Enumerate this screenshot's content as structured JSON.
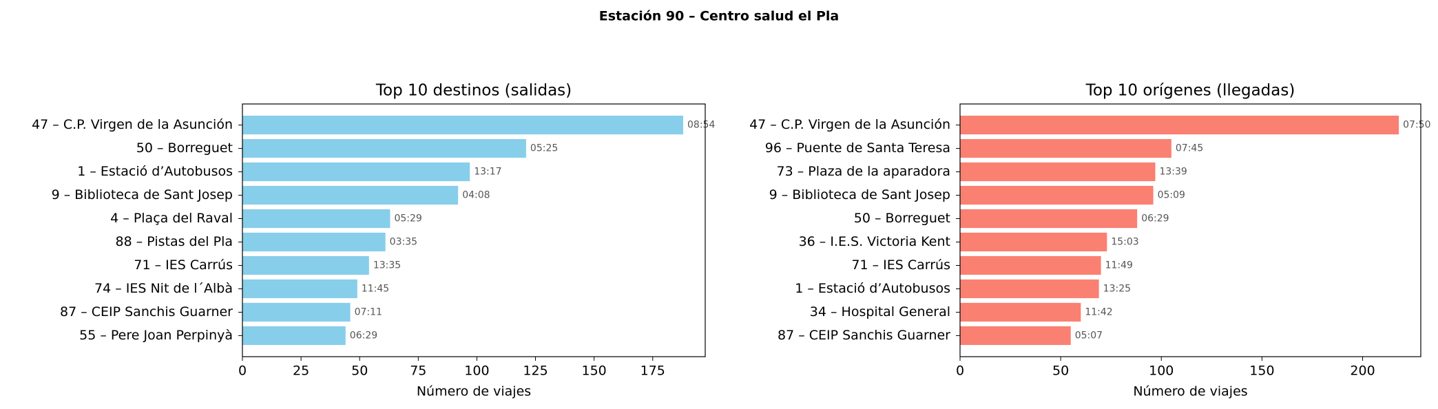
{
  "title": "Estación 90 – Centro salud el Pla",
  "chart_data": [
    {
      "type": "barh",
      "title": "Top 10 destinos (salidas)",
      "x_label": "Número de viajes",
      "color": "#87ceeb",
      "categories": [
        "47 – C.P. Virgen de la Asunción",
        "50 – Borreguet",
        "1 – Estació d’Autobusos",
        "9 – Biblioteca de Sant Josep",
        "4 – Plaça del Raval",
        "88 – Pistas del Pla",
        "71 – IES Carrús",
        "74 – IES Nit de l´Albà",
        "87 – CEIP Sanchis Guarner",
        "55 – Pere Joan Perpinyà"
      ],
      "values": [
        188,
        121,
        97,
        92,
        63,
        61,
        54,
        49,
        46,
        44
      ],
      "bar_labels": [
        "08:54",
        "05:25",
        "13:17",
        "04:08",
        "05:29",
        "03:35",
        "13:35",
        "11:45",
        "07:11",
        "06:29"
      ],
      "xlim": [
        0,
        197.4
      ],
      "xticks": [
        0,
        25,
        50,
        75,
        100,
        125,
        150,
        175
      ]
    },
    {
      "type": "barh",
      "title": "Top 10 orígenes (llegadas)",
      "x_label": "Número de viajes",
      "color": "#fa8072",
      "categories": [
        "47 – C.P. Virgen de la Asunción",
        "96 – Puente de Santa Teresa",
        "73 – Plaza de la aparadora",
        "9 – Biblioteca de Sant Josep",
        "50 – Borreguet",
        "36 – I.E.S. Victoria Kent",
        "71 – IES Carrús",
        "1 – Estació d’Autobusos",
        "34 – Hospital General",
        "87 – CEIP Sanchis Guarner"
      ],
      "values": [
        218,
        105,
        97,
        96,
        88,
        73,
        70,
        69,
        60,
        55
      ],
      "bar_labels": [
        "07:50",
        "07:45",
        "13:39",
        "05:09",
        "06:29",
        "15:03",
        "11:49",
        "13:25",
        "11:42",
        "05:07"
      ],
      "xlim": [
        0,
        228.9
      ],
      "xticks": [
        0,
        50,
        100,
        150,
        200
      ]
    }
  ]
}
